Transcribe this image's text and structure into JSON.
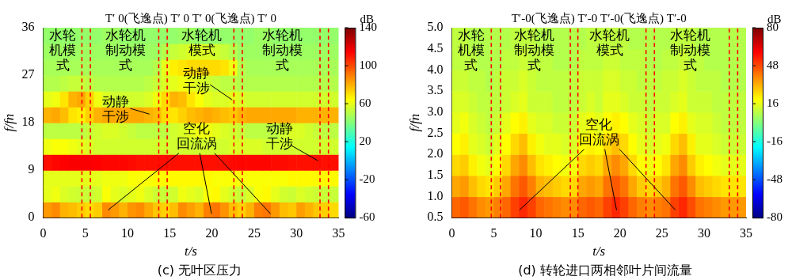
{
  "chart_data": [
    {
      "type": "heatmap",
      "title": "T′ 0(飞逸点) T′ 0 T′ 0(飞逸点) T′ 0",
      "caption": "(c) 无叶区压力",
      "x_label": "t/s",
      "y_label": "f/fn",
      "xlim": [
        0,
        35
      ],
      "xticks": [
        0,
        5,
        10,
        15,
        20,
        25,
        30,
        35
      ],
      "ylim": [
        0,
        36
      ],
      "yticks": [
        0,
        9,
        18,
        27,
        36
      ],
      "grid": false,
      "x_bins": [
        0,
        1,
        2,
        3,
        4,
        5,
        6,
        7,
        8,
        9,
        10,
        11,
        12,
        13,
        14,
        15,
        16,
        17,
        18,
        19,
        20,
        21,
        22,
        23,
        24,
        25,
        26,
        27,
        28,
        29,
        30,
        31,
        32,
        33,
        34,
        35
      ],
      "y_bins": [
        0,
        3,
        6,
        9,
        12,
        15,
        18,
        21,
        24,
        27,
        30,
        33,
        36
      ],
      "z": [
        [
          85,
          88,
          80,
          78,
          75,
          72,
          75,
          88,
          85,
          80,
          86,
          88,
          82,
          76,
          74,
          78,
          88,
          84,
          80,
          90,
          92,
          86,
          78,
          74,
          80,
          90,
          92,
          85,
          78,
          76,
          84,
          80,
          76,
          74,
          72
        ],
        [
          60,
          62,
          58,
          56,
          55,
          54,
          56,
          64,
          60,
          58,
          60,
          62,
          58,
          55,
          54,
          56,
          62,
          60,
          58,
          64,
          66,
          60,
          56,
          54,
          58,
          64,
          66,
          60,
          56,
          55,
          58,
          56,
          55,
          54,
          54
        ],
        [
          60,
          60,
          60,
          60,
          60,
          60,
          60,
          62,
          62,
          62,
          64,
          64,
          64,
          66,
          66,
          66,
          66,
          66,
          66,
          66,
          64,
          64,
          64,
          64,
          64,
          64,
          64,
          64,
          64,
          66,
          66,
          66,
          66,
          66,
          66
        ],
        [
          112,
          114,
          115,
          116,
          116,
          116,
          115,
          114,
          114,
          114,
          113,
          112,
          112,
          112,
          112,
          112,
          112,
          112,
          112,
          112,
          112,
          112,
          113,
          114,
          114,
          114,
          114,
          113,
          113,
          112,
          112,
          112,
          112,
          112,
          112
        ],
        [
          62,
          64,
          64,
          62,
          60,
          58,
          56,
          56,
          56,
          56,
          56,
          56,
          56,
          56,
          56,
          56,
          56,
          56,
          56,
          56,
          56,
          56,
          58,
          58,
          58,
          58,
          56,
          56,
          56,
          56,
          56,
          56,
          56,
          56,
          56
        ],
        [
          52,
          52,
          52,
          52,
          52,
          54,
          56,
          58,
          58,
          56,
          54,
          52,
          52,
          52,
          52,
          56,
          58,
          60,
          62,
          62,
          60,
          58,
          56,
          54,
          52,
          52,
          52,
          52,
          56,
          58,
          58,
          56,
          54,
          52,
          52
        ],
        [
          80,
          82,
          78,
          70,
          68,
          74,
          80,
          82,
          82,
          82,
          82,
          82,
          80,
          78,
          72,
          70,
          74,
          78,
          80,
          82,
          80,
          78,
          76,
          80,
          82,
          82,
          82,
          82,
          82,
          82,
          80,
          80,
          80,
          80,
          80
        ],
        [
          60,
          62,
          70,
          80,
          82,
          74,
          62,
          58,
          56,
          56,
          56,
          56,
          58,
          62,
          72,
          80,
          78,
          70,
          64,
          60,
          58,
          58,
          60,
          58,
          56,
          56,
          56,
          56,
          56,
          56,
          56,
          56,
          56,
          56,
          56
        ],
        [
          50,
          50,
          52,
          54,
          54,
          52,
          50,
          50,
          50,
          50,
          50,
          50,
          52,
          54,
          58,
          60,
          62,
          60,
          58,
          56,
          54,
          52,
          52,
          50,
          50,
          50,
          50,
          50,
          50,
          50,
          50,
          50,
          50,
          50,
          50
        ],
        [
          48,
          48,
          48,
          48,
          48,
          48,
          48,
          48,
          48,
          48,
          48,
          48,
          48,
          50,
          60,
          68,
          70,
          72,
          72,
          72,
          72,
          70,
          62,
          50,
          48,
          48,
          48,
          48,
          48,
          48,
          48,
          48,
          48,
          48,
          48
        ],
        [
          46,
          46,
          46,
          46,
          46,
          46,
          46,
          46,
          46,
          46,
          46,
          46,
          46,
          46,
          50,
          54,
          56,
          58,
          58,
          58,
          56,
          54,
          50,
          46,
          46,
          46,
          46,
          46,
          46,
          46,
          46,
          46,
          46,
          46,
          46
        ],
        [
          44,
          44,
          44,
          44,
          44,
          44,
          44,
          46,
          46,
          44,
          44,
          44,
          44,
          44,
          44,
          44,
          46,
          46,
          44,
          44,
          44,
          44,
          44,
          44,
          44,
          46,
          46,
          44,
          44,
          44,
          44,
          44,
          44,
          44,
          44
        ]
      ],
      "colorbar": {
        "label": "dB",
        "range": [
          -60,
          140
        ],
        "ticks": [
          -60,
          -20,
          20,
          60,
          100,
          140
        ]
      },
      "vlines": {
        "values": [
          4.6,
          5.6,
          13.7,
          14.7,
          22.6,
          23.6,
          32.8,
          33.8
        ],
        "color": "#ff0000",
        "line_style": "dashed"
      },
      "modes": [
        "水轮机模式",
        "水轮机制动模式",
        "水轮机模式",
        "水轮机制动模式"
      ],
      "annotations": [
        "动静干涉",
        "动静干涉",
        "动静干涉",
        "空化回流涡"
      ]
    },
    {
      "type": "heatmap",
      "title": "T′-0(飞逸点) T′-0 T′-0(飞逸点) T′-0",
      "caption": "(d) 转轮进口两相邻叶片间流量",
      "x_label": "t/s",
      "y_label": "f/fn",
      "xlim": [
        0,
        35
      ],
      "xticks": [
        0,
        5,
        10,
        15,
        20,
        25,
        30,
        35
      ],
      "ylim": [
        0.5,
        5
      ],
      "yticks": [
        0.5,
        {
          "value": 1,
          "label": "1.0"
        },
        1.5,
        {
          "value": 2,
          "label": "2.0"
        },
        2.5,
        {
          "value": 3,
          "label": "3.0"
        },
        3.5,
        {
          "value": 4,
          "label": "4.0"
        },
        4.5,
        {
          "value": 5,
          "label": "5.0"
        }
      ],
      "grid": false,
      "x_bins": [
        0,
        1,
        2,
        3,
        4,
        5,
        6,
        7,
        8,
        9,
        10,
        11,
        12,
        13,
        14,
        15,
        16,
        17,
        18,
        19,
        20,
        21,
        22,
        23,
        24,
        25,
        26,
        27,
        28,
        29,
        30,
        31,
        32,
        33,
        34,
        35
      ],
      "y_bins": [
        0.5,
        1,
        1.5,
        2,
        2.5,
        3,
        3.5,
        4,
        4.5,
        5
      ],
      "z": [
        [
          44,
          46,
          42,
          38,
          36,
          40,
          44,
          50,
          54,
          50,
          44,
          42,
          40,
          38,
          38,
          44,
          46,
          44,
          50,
          54,
          50,
          44,
          40,
          38,
          40,
          42,
          50,
          54,
          48,
          42,
          40,
          38,
          36,
          36,
          36
        ],
        [
          34,
          36,
          30,
          26,
          24,
          28,
          34,
          42,
          46,
          40,
          32,
          30,
          28,
          26,
          26,
          34,
          36,
          34,
          42,
          46,
          42,
          34,
          28,
          26,
          28,
          32,
          42,
          46,
          38,
          30,
          28,
          26,
          24,
          24,
          24
        ],
        [
          26,
          28,
          22,
          18,
          16,
          20,
          26,
          34,
          38,
          30,
          24,
          22,
          20,
          18,
          18,
          26,
          28,
          26,
          34,
          38,
          34,
          26,
          20,
          18,
          20,
          24,
          34,
          38,
          28,
          22,
          20,
          18,
          16,
          16,
          16
        ],
        [
          20,
          22,
          16,
          14,
          12,
          16,
          20,
          26,
          30,
          22,
          18,
          16,
          16,
          14,
          14,
          20,
          22,
          20,
          26,
          30,
          26,
          20,
          16,
          14,
          16,
          18,
          26,
          30,
          22,
          16,
          16,
          14,
          12,
          12,
          12
        ],
        [
          16,
          18,
          14,
          12,
          10,
          12,
          16,
          20,
          22,
          16,
          14,
          14,
          12,
          12,
          12,
          16,
          18,
          16,
          20,
          22,
          20,
          16,
          14,
          12,
          14,
          14,
          20,
          22,
          16,
          14,
          14,
          12,
          10,
          10,
          10
        ],
        [
          14,
          14,
          12,
          10,
          10,
          10,
          12,
          14,
          16,
          12,
          12,
          12,
          10,
          10,
          10,
          12,
          14,
          12,
          16,
          16,
          14,
          12,
          12,
          10,
          12,
          12,
          14,
          16,
          12,
          12,
          12,
          10,
          10,
          10,
          10
        ],
        [
          12,
          12,
          10,
          10,
          8,
          10,
          12,
          12,
          14,
          12,
          10,
          10,
          10,
          10,
          10,
          12,
          12,
          12,
          14,
          14,
          12,
          12,
          10,
          10,
          10,
          12,
          12,
          14,
          12,
          10,
          10,
          10,
          8,
          8,
          8
        ],
        [
          10,
          10,
          10,
          8,
          8,
          8,
          10,
          10,
          12,
          10,
          10,
          10,
          8,
          8,
          8,
          10,
          10,
          10,
          12,
          12,
          10,
          10,
          10,
          8,
          8,
          10,
          10,
          12,
          10,
          10,
          8,
          8,
          8,
          8,
          8
        ],
        [
          10,
          10,
          8,
          8,
          8,
          8,
          8,
          10,
          10,
          10,
          8,
          8,
          8,
          8,
          8,
          8,
          10,
          10,
          10,
          10,
          10,
          8,
          8,
          8,
          8,
          8,
          10,
          10,
          10,
          8,
          8,
          8,
          8,
          8,
          8
        ]
      ],
      "colorbar": {
        "label": "dB",
        "range": [
          -80,
          80
        ],
        "ticks": [
          -80,
          -48,
          -16,
          16,
          48,
          80
        ]
      },
      "vlines": {
        "values": [
          4.7,
          5.8,
          14.1,
          15.0,
          23.1,
          24.1,
          33.0,
          34.0
        ],
        "color": "#ff0000",
        "line_style": "dashed"
      },
      "modes": [
        "水轮机模式",
        "水轮机制动模式",
        "水轮机模式",
        "水轮机制动模式"
      ],
      "annotations": [
        "空化回流涡"
      ]
    }
  ]
}
